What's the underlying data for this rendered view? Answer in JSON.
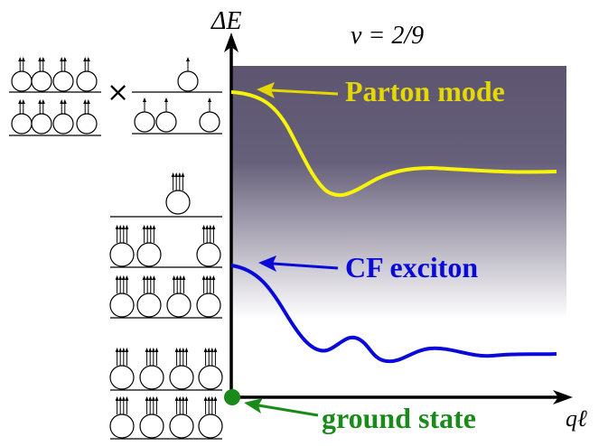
{
  "axes": {
    "y_label": "ΔE",
    "x_label": "qℓ"
  },
  "filling_label": "ν = 2/9",
  "labels": {
    "parton_mode": "Parton mode",
    "cf_exciton": "CF exciton",
    "ground_state": "ground state"
  },
  "product_symbol": "×",
  "colors": {
    "parton_mode": "#f7f30a",
    "parton_label": "#e4d800",
    "cf_exciton": "#0a0ad8",
    "ground_state": "#1a8a1a",
    "continuum_top": "#5d5570",
    "continuum_bottom": "#ffffff",
    "axis": "#000000"
  }
}
